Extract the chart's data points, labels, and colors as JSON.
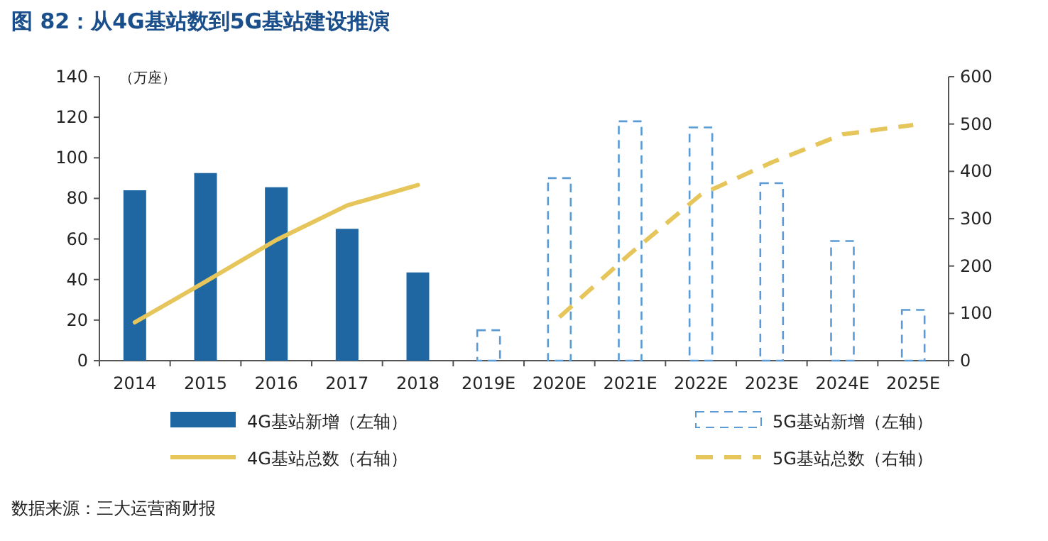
{
  "chart_data": {
    "type": "bar",
    "title": "图 82：从4G基站数到5G基站建设推演",
    "ylabel": "（万座）",
    "categories": [
      "2014",
      "2015",
      "2016",
      "2017",
      "2018",
      "2019E",
      "2020E",
      "2021E",
      "2022E",
      "2023E",
      "2024E",
      "2025E"
    ],
    "series": [
      {
        "name": "4G基站新增（左轴）",
        "color": "#1f67a3",
        "line_style": "solid",
        "values": [
          84,
          92.5,
          85.5,
          65,
          43.5,
          null,
          null,
          null,
          null,
          null,
          null,
          null
        ]
      },
      {
        "name": "5G基站新增（左轴）",
        "color": "#5b9bd5",
        "line_style": "dashed",
        "values": [
          null,
          null,
          null,
          null,
          null,
          15,
          90,
          118,
          115,
          87.5,
          59,
          25
        ]
      },
      {
        "name": "4G基站总数（右轴）",
        "type": "line",
        "axis": "y2",
        "color": "#e6c55a",
        "line_style": "solid",
        "values": [
          81,
          167,
          255,
          328,
          371,
          null,
          null,
          null,
          null,
          null,
          null,
          null
        ]
      },
      {
        "name": "5G基站总数（右轴）",
        "type": "line",
        "axis": "y2",
        "color": "#e6c55a",
        "line_style": "dashed",
        "values": [
          null,
          null,
          null,
          null,
          null,
          null,
          92,
          226,
          351,
          419,
          478,
          498
        ]
      }
    ],
    "ylim": [
      0,
      140
    ],
    "yticks": [
      0,
      20,
      40,
      60,
      80,
      100,
      120,
      140
    ],
    "y2lim": [
      0,
      600
    ],
    "y2ticks": [
      0,
      100,
      200,
      300,
      400,
      500,
      600
    ],
    "legend": "bottom",
    "annotations": [
      "数据来源：三大运营商财报"
    ]
  }
}
